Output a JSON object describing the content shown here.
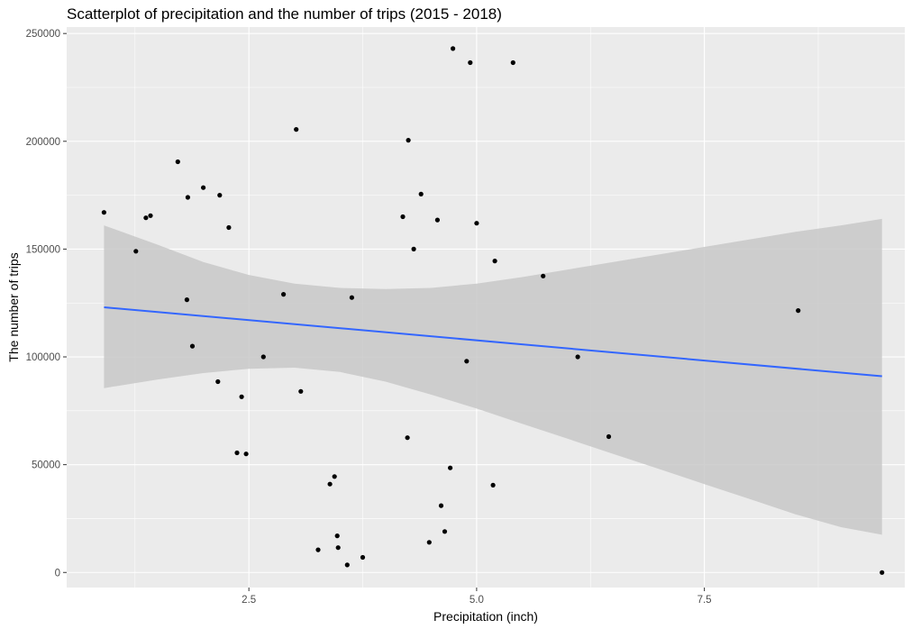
{
  "chart_data": {
    "type": "scatter",
    "title": "Scatterplot of precipitation and the number of trips (2015 - 2018)",
    "xlabel": "Precipitation (inch)",
    "ylabel": "The number of trips",
    "xlim": [
      0.5,
      9.7
    ],
    "ylim": [
      -7000,
      253000
    ],
    "x_ticks": [
      2.5,
      5.0,
      7.5
    ],
    "x_tick_labels": [
      "2.5",
      "5.0",
      "7.5"
    ],
    "y_ticks": [
      0,
      50000,
      100000,
      150000,
      200000,
      250000
    ],
    "y_tick_labels": [
      "0",
      "50000",
      "100000",
      "150000",
      "200000",
      "250000"
    ],
    "grid": true,
    "legend": "none",
    "colors": {
      "panel_background": "#ebebeb",
      "gridline": "#ffffff",
      "point": "#000000",
      "fit_line": "#3366ff",
      "ribbon": "#c8c8c8"
    },
    "points": {
      "x": [
        0.91,
        1.26,
        1.37,
        1.42,
        1.72,
        1.82,
        1.83,
        1.88,
        2.0,
        2.16,
        2.18,
        2.28,
        2.37,
        2.42,
        2.47,
        2.66,
        2.88,
        3.02,
        3.07,
        3.26,
        3.39,
        3.44,
        3.47,
        3.48,
        3.58,
        3.63,
        3.75,
        4.19,
        4.24,
        4.25,
        4.31,
        4.39,
        4.48,
        4.57,
        4.61,
        4.65,
        4.71,
        4.74,
        4.89,
        4.93,
        5.0,
        5.18,
        5.2,
        5.4,
        5.73,
        6.11,
        6.45,
        8.53,
        9.45
      ],
      "y": [
        167000,
        149000,
        164500,
        165500,
        190500,
        126500,
        174000,
        105000,
        178500,
        88500,
        175000,
        160000,
        55500,
        81500,
        55000,
        100000,
        129000,
        205500,
        84000,
        10500,
        41000,
        44500,
        17000,
        11500,
        3500,
        127500,
        7000,
        165000,
        62500,
        200500,
        150000,
        175500,
        14000,
        163500,
        31000,
        19000,
        48500,
        243000,
        98000,
        236500,
        162000,
        40500,
        144500,
        236500,
        137500,
        100000,
        63000,
        121500,
        0
      ],
      "note_unused": null
    },
    "fit": {
      "method": "lm",
      "x": [
        0.91,
        9.45
      ],
      "y": [
        123000,
        91000
      ],
      "ci_upper": [
        [
          0.91,
          161000
        ],
        [
          1.5,
          152000
        ],
        [
          2.0,
          144000
        ],
        [
          2.5,
          138000
        ],
        [
          3.0,
          134000
        ],
        [
          3.5,
          132000
        ],
        [
          4.0,
          131500
        ],
        [
          4.5,
          132000
        ],
        [
          5.0,
          134000
        ],
        [
          5.5,
          137000
        ],
        [
          6.0,
          140500
        ],
        [
          6.5,
          144000
        ],
        [
          7.0,
          147500
        ],
        [
          7.5,
          151000
        ],
        [
          8.0,
          154500
        ],
        [
          8.5,
          158000
        ],
        [
          9.0,
          161000
        ],
        [
          9.45,
          164000
        ]
      ],
      "ci_lower": [
        [
          0.91,
          85500
        ],
        [
          1.5,
          89500
        ],
        [
          2.0,
          92500
        ],
        [
          2.5,
          94500
        ],
        [
          3.0,
          95000
        ],
        [
          3.5,
          93000
        ],
        [
          4.0,
          88500
        ],
        [
          4.5,
          82500
        ],
        [
          5.0,
          76000
        ],
        [
          5.5,
          69000
        ],
        [
          6.0,
          62000
        ],
        [
          6.5,
          55000
        ],
        [
          7.0,
          48000
        ],
        [
          7.5,
          41000
        ],
        [
          8.0,
          34000
        ],
        [
          8.5,
          27000
        ],
        [
          9.0,
          21000
        ],
        [
          9.45,
          17500
        ]
      ]
    }
  }
}
